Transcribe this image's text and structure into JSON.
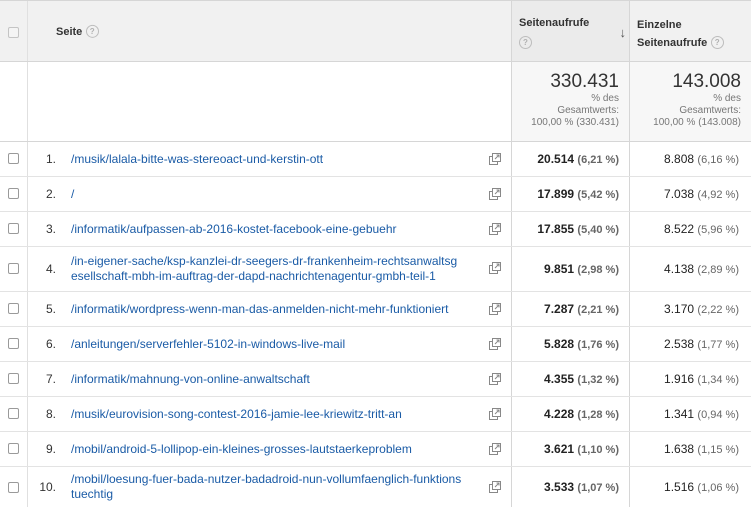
{
  "header": {
    "page_label": "Seite",
    "views_label": "Seitenaufrufe",
    "unique_label_line1": "Einzelne",
    "unique_label_line2": "Seitenaufrufe",
    "help_glyph": "?",
    "sort_glyph": "↓"
  },
  "totals": {
    "views_total": "330.431",
    "views_sub1": "% des",
    "views_sub2": "Gesamtwerts:",
    "views_sub3": "100,00 % (330.431)",
    "unique_total": "143.008",
    "unique_sub1": "% des",
    "unique_sub2": "Gesamtwerts:",
    "unique_sub3": "100,00 % (143.008)"
  },
  "rows": [
    {
      "idx": "1.",
      "page_line1": "/musik/lalala-bitte-was-stereoact-und-kerstin-ott",
      "page_line2": "",
      "views": "20.514",
      "views_pct": "(6,21 %)",
      "unique": "8.808",
      "unique_pct": "(6,16 %)"
    },
    {
      "idx": "2.",
      "page_line1": "/",
      "page_line2": "",
      "views": "17.899",
      "views_pct": "(5,42 %)",
      "unique": "7.038",
      "unique_pct": "(4,92 %)"
    },
    {
      "idx": "3.",
      "page_line1": "/informatik/aufpassen-ab-2016-kostet-facebook-eine-gebuehr",
      "page_line2": "",
      "views": "17.855",
      "views_pct": "(5,40 %)",
      "unique": "8.522",
      "unique_pct": "(5,96 %)"
    },
    {
      "idx": "4.",
      "page_line1": "/in-eigener-sache/ksp-kanzlei-dr-seegers-dr-frankenheim-rechtsanwaltsg",
      "page_line2": "esellschaft-mbh-im-auftrag-der-dapd-nachrichtenagentur-gmbh-teil-1",
      "views": "9.851",
      "views_pct": "(2,98 %)",
      "unique": "4.138",
      "unique_pct": "(2,89 %)"
    },
    {
      "idx": "5.",
      "page_line1": "/informatik/wordpress-wenn-man-das-anmelden-nicht-mehr-funktioniert",
      "page_line2": "",
      "views": "7.287",
      "views_pct": "(2,21 %)",
      "unique": "3.170",
      "unique_pct": "(2,22 %)"
    },
    {
      "idx": "6.",
      "page_line1": "/anleitungen/serverfehler-5102-in-windows-live-mail",
      "page_line2": "",
      "views": "5.828",
      "views_pct": "(1,76 %)",
      "unique": "2.538",
      "unique_pct": "(1,77 %)"
    },
    {
      "idx": "7.",
      "page_line1": "/informatik/mahnung-von-online-anwaltschaft",
      "page_line2": "",
      "views": "4.355",
      "views_pct": "(1,32 %)",
      "unique": "1.916",
      "unique_pct": "(1,34 %)"
    },
    {
      "idx": "8.",
      "page_line1": "/musik/eurovision-song-contest-2016-jamie-lee-kriewitz-tritt-an",
      "page_line2": "",
      "views": "4.228",
      "views_pct": "(1,28 %)",
      "unique": "1.341",
      "unique_pct": "(0,94 %)"
    },
    {
      "idx": "9.",
      "page_line1": "/mobil/android-5-lollipop-ein-kleines-grosses-lautstaerkeproblem",
      "page_line2": "",
      "views": "3.621",
      "views_pct": "(1,10 %)",
      "unique": "1.638",
      "unique_pct": "(1,15 %)"
    },
    {
      "idx": "10.",
      "page_line1": "/mobil/loesung-fuer-bada-nutzer-badadroid-nun-vollumfaenglich-funktions",
      "page_line2": "tuechtig",
      "views": "3.533",
      "views_pct": "(1,07 %)",
      "unique": "1.516",
      "unique_pct": "(1,06 %)"
    }
  ],
  "icons": {
    "row_checkbox": "checkbox-icon",
    "open_link": "external-link-icon",
    "sort": "sort-descending-icon",
    "help": "help-icon"
  },
  "colors": {
    "link": "#1a5ba6",
    "header_bg": "#f1f1f1",
    "border": "#d6d6d6"
  }
}
